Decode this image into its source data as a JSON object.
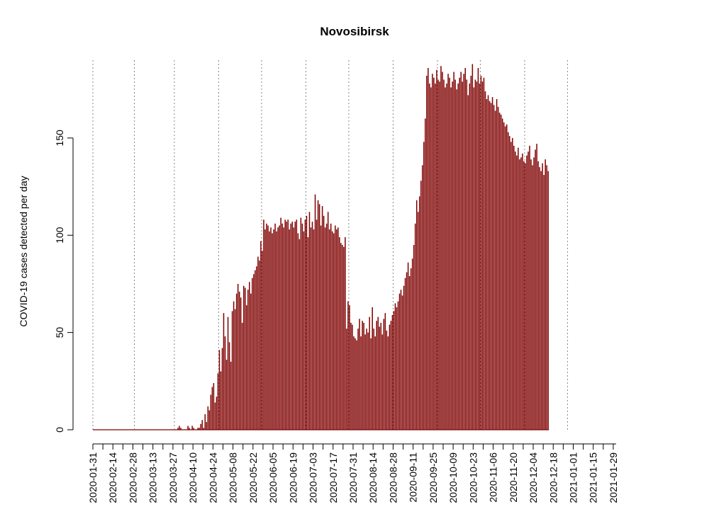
{
  "chart_data": {
    "type": "bar",
    "title": "Novosibirsk",
    "ylabel": "COVID-19 cases detected per day",
    "xlabel": "",
    "ylim": [
      0,
      190
    ],
    "yticks": [
      0,
      50,
      100,
      150
    ],
    "x_start": "2020-01-31",
    "x_end": "2021-01-31",
    "xtick_labels": [
      "2020-01-31",
      "2020-02-14",
      "2020-02-28",
      "2020-03-13",
      "2020-03-27",
      "2020-04-10",
      "2020-04-24",
      "2020-05-08",
      "2020-05-22",
      "2020-06-05",
      "2020-06-19",
      "2020-07-03",
      "2020-07-17",
      "2020-07-31",
      "2020-08-14",
      "2020-08-28",
      "2020-09-11",
      "2020-09-25",
      "2020-10-09",
      "2020-10-23",
      "2020-11-06",
      "2020-11-20",
      "2020-12-04",
      "2020-12-18",
      "2021-01-01",
      "2021-01-15",
      "2021-01-29"
    ],
    "vlines": [
      "2020-01-31",
      "2020-02-29",
      "2020-03-28",
      "2020-04-28",
      "2020-05-28",
      "2020-06-28",
      "2020-07-28",
      "2020-08-28",
      "2020-09-28",
      "2020-10-28",
      "2020-11-28",
      "2020-12-28"
    ],
    "bar_color": "#7f0000",
    "values": [
      0,
      0,
      0,
      0,
      0,
      0,
      0,
      0,
      0,
      0,
      0,
      0,
      0,
      0,
      0,
      0,
      0,
      0,
      0,
      0,
      0,
      0,
      0,
      0,
      0,
      0,
      0,
      0,
      0,
      0,
      0,
      0,
      0,
      0,
      0,
      0,
      0,
      0,
      0,
      0,
      0,
      0,
      0,
      0,
      0,
      0,
      0,
      0,
      0,
      0,
      0,
      0,
      0,
      0,
      0,
      0,
      0,
      0,
      0,
      1,
      2,
      1,
      0,
      0,
      0,
      0,
      2,
      1,
      0,
      2,
      1,
      0,
      0,
      1,
      1,
      3,
      5,
      1,
      8,
      4,
      12,
      10,
      18,
      22,
      24,
      14,
      17,
      29,
      41,
      30,
      42,
      60,
      48,
      36,
      58,
      45,
      35,
      61,
      66,
      62,
      70,
      75,
      71,
      68,
      55,
      74,
      73,
      64,
      72,
      76,
      70,
      78,
      80,
      82,
      84,
      89,
      87,
      97,
      92,
      108,
      103,
      106,
      105,
      102,
      104,
      101,
      103,
      106,
      102,
      104,
      105,
      109,
      106,
      104,
      108,
      107,
      108,
      103,
      106,
      107,
      104,
      107,
      108,
      101,
      98,
      109,
      106,
      102,
      108,
      110,
      99,
      112,
      104,
      107,
      103,
      121,
      108,
      118,
      116,
      105,
      115,
      110,
      104,
      106,
      112,
      103,
      106,
      102,
      101,
      105,
      103,
      104,
      99,
      96,
      95,
      94,
      99,
      52,
      66,
      64,
      55,
      54,
      48,
      47,
      46,
      52,
      57,
      48,
      56,
      55,
      49,
      52,
      50,
      58,
      47,
      63,
      52,
      48,
      56,
      58,
      53,
      55,
      49,
      57,
      60,
      51,
      48,
      54,
      56,
      59,
      61,
      65,
      63,
      66,
      70,
      72,
      69,
      74,
      78,
      81,
      86,
      79,
      83,
      88,
      95,
      106,
      118,
      112,
      120,
      128,
      136,
      148,
      160,
      182,
      186,
      178,
      176,
      183,
      181,
      178,
      185,
      180,
      179,
      187,
      184,
      180,
      176,
      178,
      183,
      181,
      176,
      179,
      184,
      180,
      175,
      178,
      181,
      184,
      179,
      183,
      186,
      180,
      172,
      178,
      182,
      188,
      176,
      180,
      179,
      186,
      178,
      182,
      179,
      181,
      174,
      170,
      172,
      169,
      168,
      171,
      167,
      164,
      170,
      166,
      163,
      162,
      160,
      158,
      156,
      157,
      153,
      151,
      148,
      150,
      146,
      143,
      141,
      145,
      139,
      140,
      142,
      138,
      137,
      141,
      143,
      146,
      139,
      136,
      140,
      144,
      147,
      138,
      135,
      133,
      137,
      131,
      139,
      136,
      133
    ]
  }
}
